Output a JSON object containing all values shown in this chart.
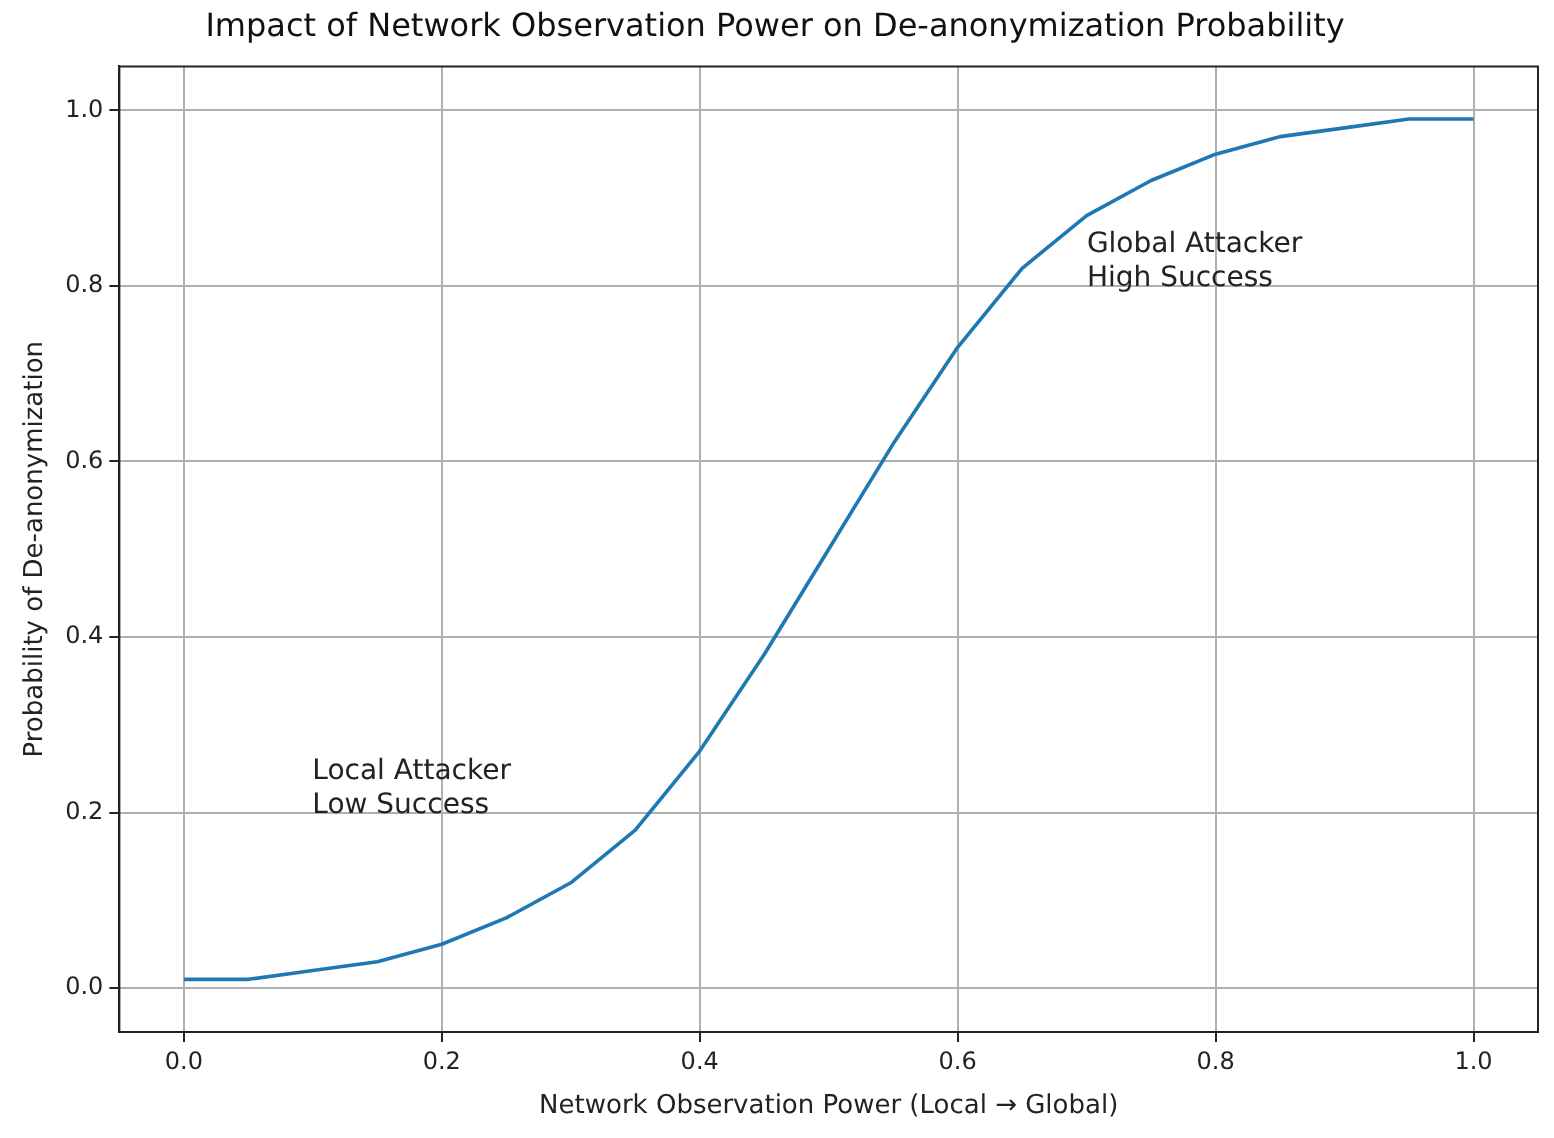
{
  "chart_data": {
    "type": "line",
    "title": "Impact of Network Observation Power on De-anonymization Probability",
    "xlabel": "Network Observation Power (Local → Global)",
    "ylabel": "Probability of De-anonymization",
    "x": [
      0,
      0.05,
      0.1,
      0.15,
      0.2,
      0.25,
      0.3,
      0.35,
      0.4,
      0.45,
      0.5,
      0.55,
      0.6,
      0.65,
      0.7,
      0.75,
      0.8,
      0.85,
      0.9,
      0.95,
      1.0
    ],
    "series": [
      {
        "color": "#1f77b4",
        "values": [
          0.01,
          0.01,
          0.02,
          0.03,
          0.05,
          0.08,
          0.12,
          0.18,
          0.27,
          0.38,
          0.5,
          0.62,
          0.73,
          0.82,
          0.88,
          0.92,
          0.95,
          0.97,
          0.98,
          0.99,
          0.99
        ]
      }
    ],
    "xlim": [
      -0.05,
      1.05
    ],
    "ylim": [
      -0.05,
      1.05
    ],
    "xticks": [
      {
        "value": 0,
        "label": "0.0"
      },
      {
        "value": 0.2,
        "label": "0.2"
      },
      {
        "value": 0.4,
        "label": "0.4"
      },
      {
        "value": 0.6,
        "label": "0.6"
      },
      {
        "value": 0.8,
        "label": "0.8"
      },
      {
        "value": 1.0,
        "label": "1.0"
      }
    ],
    "yticks": [
      {
        "value": 0,
        "label": "0.0"
      },
      {
        "value": 0.2,
        "label": "0.2"
      },
      {
        "value": 0.4,
        "label": "0.4"
      },
      {
        "value": 0.6,
        "label": "0.6"
      },
      {
        "value": 0.8,
        "label": "0.8"
      },
      {
        "value": 1.0,
        "label": "1.0"
      }
    ],
    "annotations": [
      "Local Attacker\nLow Success",
      "Global Attacker\nHigh Success"
    ],
    "grid": true,
    "marker": "none",
    "line_style": "solid",
    "legend": false
  }
}
